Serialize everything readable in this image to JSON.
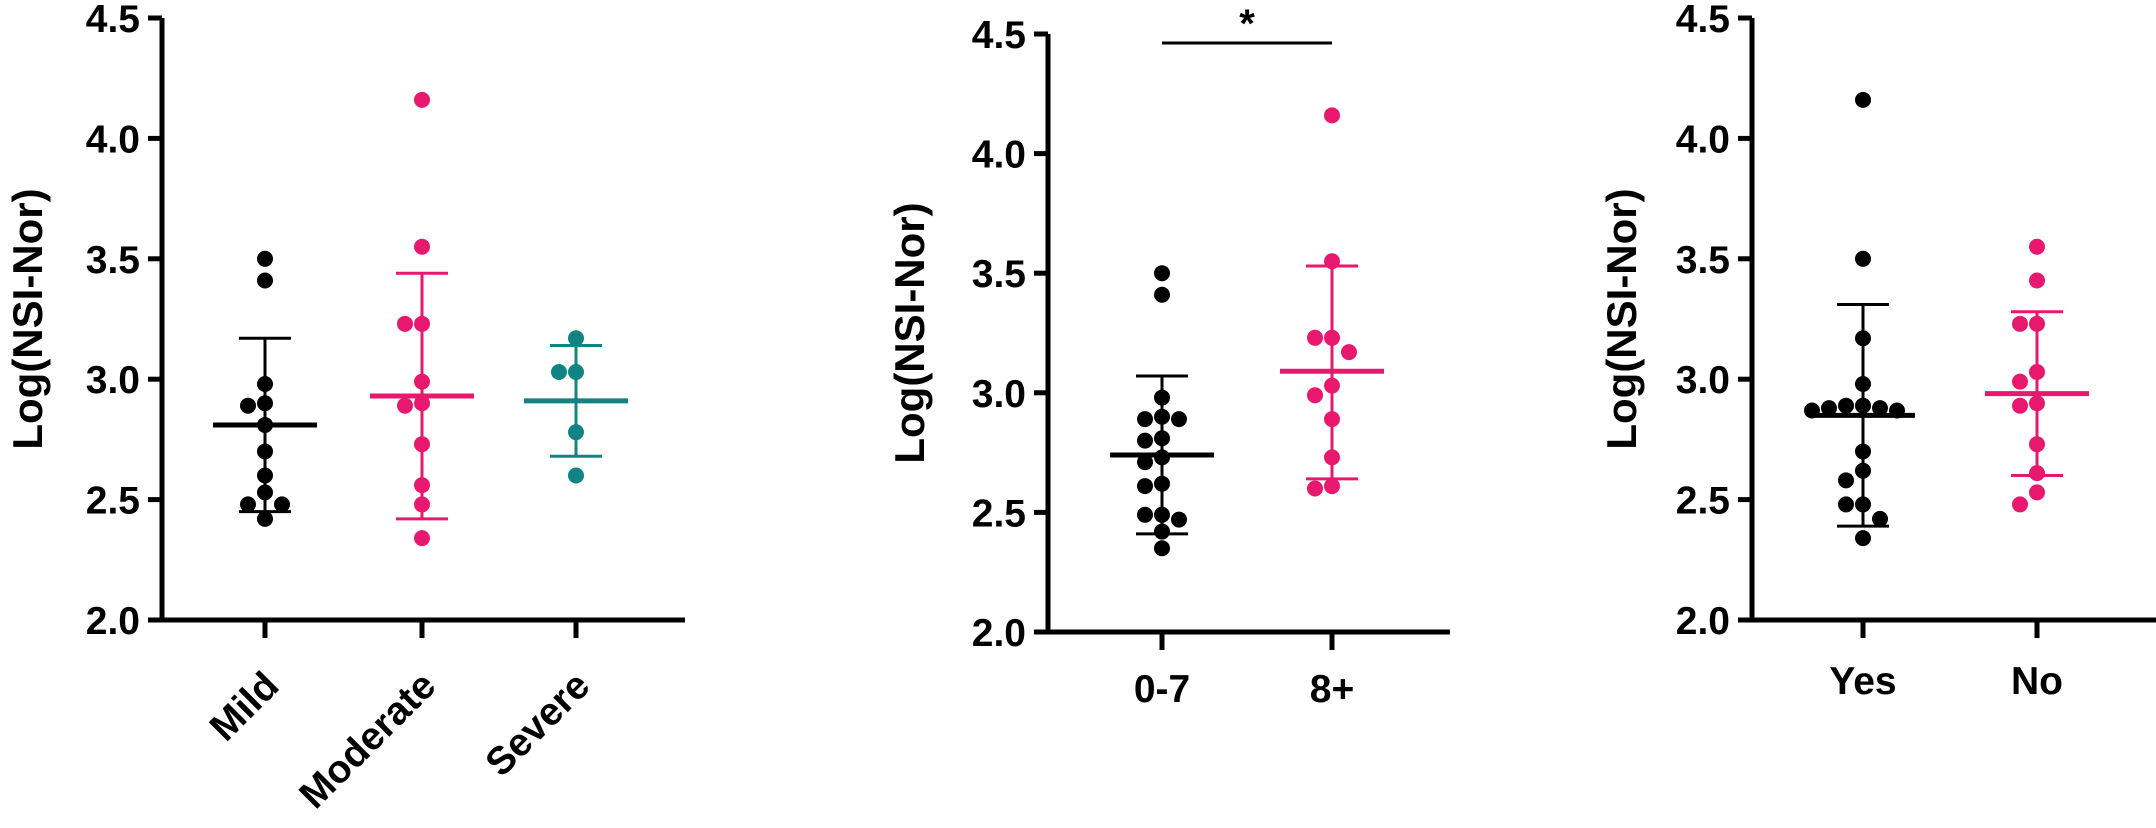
{
  "colors": {
    "black": "#000000",
    "pink": "#E8186F",
    "teal": "#128383"
  },
  "chart_data": [
    {
      "type": "scatter",
      "ylabel": "Log(NSI-Nor)",
      "ylim": [
        2.0,
        4.5
      ],
      "yticks": [
        "2.0",
        "2.5",
        "3.0",
        "3.5",
        "4.0",
        "4.5"
      ],
      "categories": [
        "Mild",
        "Moderate",
        "Severe"
      ],
      "category_label_rotation": -45,
      "groups": [
        {
          "category": "Mild",
          "color": "#000000",
          "mean": 2.81,
          "sd_low": 2.45,
          "sd_high": 3.17,
          "points": [
            3.5,
            3.41,
            2.98,
            2.9,
            2.89,
            2.81,
            2.7,
            2.6,
            2.53,
            2.48,
            2.48,
            2.42
          ]
        },
        {
          "category": "Moderate",
          "color": "#E8186F",
          "mean": 2.93,
          "sd_low": 2.42,
          "sd_high": 3.44,
          "points": [
            4.16,
            3.55,
            3.23,
            3.23,
            2.99,
            2.9,
            2.89,
            2.73,
            2.56,
            2.48,
            2.34
          ]
        },
        {
          "category": "Severe",
          "color": "#128383",
          "mean": 2.91,
          "sd_low": 2.68,
          "sd_high": 3.14,
          "points": [
            3.17,
            3.03,
            3.03,
            2.78,
            2.6
          ]
        }
      ]
    },
    {
      "type": "scatter",
      "ylabel": "Log(NSI-Nor)",
      "ylim": [
        2.0,
        4.5
      ],
      "yticks": [
        "2.0",
        "2.5",
        "3.0",
        "3.5",
        "4.0",
        "4.5"
      ],
      "categories": [
        "0-7",
        "8+"
      ],
      "category_label_rotation": 0,
      "significance": {
        "label": "*",
        "between": [
          "0-7",
          "8+"
        ]
      },
      "groups": [
        {
          "category": "0-7",
          "color": "#000000",
          "mean": 2.74,
          "sd_low": 2.41,
          "sd_high": 3.07,
          "points": [
            3.5,
            3.41,
            2.98,
            2.9,
            2.89,
            2.89,
            2.8,
            2.81,
            2.73,
            2.71,
            2.62,
            2.61,
            2.49,
            2.49,
            2.47,
            2.42,
            2.35
          ]
        },
        {
          "category": "8+",
          "color": "#E8186F",
          "mean": 3.09,
          "sd_low": 2.64,
          "sd_high": 3.53,
          "points": [
            4.16,
            3.55,
            3.23,
            3.23,
            3.17,
            3.03,
            2.99,
            2.89,
            2.73,
            2.61,
            2.6
          ]
        }
      ]
    },
    {
      "type": "scatter",
      "ylabel": "Log(NSI-Nor)",
      "ylim": [
        2.0,
        4.5
      ],
      "yticks": [
        "2.0",
        "2.5",
        "3.0",
        "3.5",
        "4.0",
        "4.5"
      ],
      "categories": [
        "Yes",
        "No"
      ],
      "category_label_rotation": 0,
      "groups": [
        {
          "category": "Yes",
          "color": "#000000",
          "mean": 2.85,
          "sd_low": 2.39,
          "sd_high": 3.31,
          "points": [
            4.16,
            3.5,
            3.17,
            2.98,
            2.89,
            2.89,
            2.88,
            2.88,
            2.87,
            2.87,
            2.7,
            2.62,
            2.58,
            2.48,
            2.48,
            2.42,
            2.34
          ]
        },
        {
          "category": "No",
          "color": "#E8186F",
          "mean": 2.94,
          "sd_low": 2.6,
          "sd_high": 3.28,
          "points": [
            3.55,
            3.41,
            3.23,
            3.23,
            3.03,
            2.99,
            2.9,
            2.89,
            2.73,
            2.61,
            2.53,
            2.48
          ]
        }
      ]
    }
  ]
}
